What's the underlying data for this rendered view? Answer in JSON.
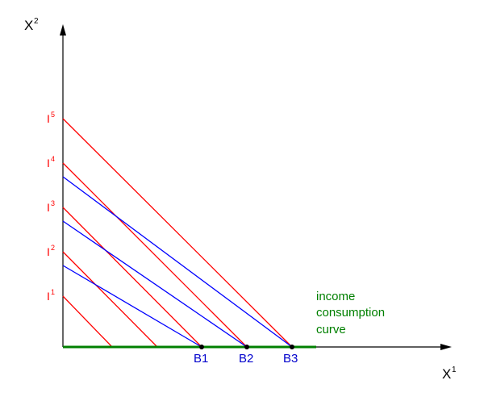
{
  "axes": {
    "y_label": "X",
    "y_sup": "2",
    "x_label": "X",
    "x_sup": "1"
  },
  "indifference_lines": [
    {
      "label": "I",
      "sup": "1"
    },
    {
      "label": "I",
      "sup": "2"
    },
    {
      "label": "I",
      "sup": "3"
    },
    {
      "label": "I",
      "sup": "4"
    },
    {
      "label": "I",
      "sup": "5"
    }
  ],
  "budget_points": [
    "B1",
    "B2",
    "B3"
  ],
  "curve_label": {
    "line1": "income",
    "line2": "consumption",
    "line3": "curve"
  },
  "colors": {
    "indifference": "#ff0000",
    "budget": "#0000ff",
    "curve": "#008000",
    "budget_text": "#0000cc",
    "axis": "#000000"
  }
}
